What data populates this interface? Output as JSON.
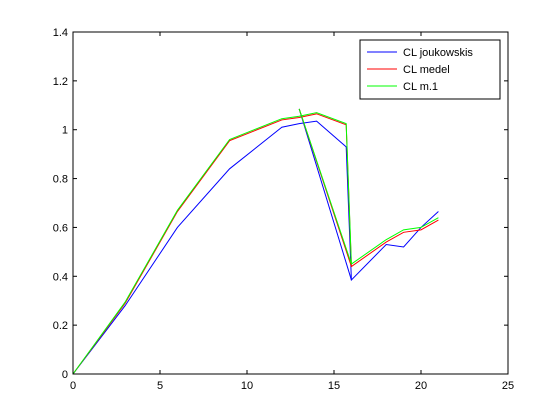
{
  "chart_data": {
    "type": "line",
    "xlim": [
      0,
      25
    ],
    "ylim": [
      0,
      1.4
    ],
    "x_ticks": [
      "0",
      "5",
      "10",
      "15",
      "20",
      "25"
    ],
    "y_ticks": [
      "0",
      "0.2",
      "0.4",
      "0.6",
      "0.8",
      "1",
      "1.2",
      "1.4"
    ],
    "grid": false,
    "legend_position": "top-right",
    "series": [
      {
        "name": "CL joukowskis",
        "color": "#0000ff",
        "points": [
          [
            0,
            0
          ],
          [
            3,
            0.28
          ],
          [
            6,
            0.6
          ],
          [
            9,
            0.84
          ],
          [
            12,
            1.01
          ],
          [
            13,
            1.025
          ],
          [
            14,
            1.035
          ],
          [
            15.7,
            0.93
          ],
          [
            16,
            0.385
          ],
          [
            18,
            0.53
          ],
          [
            19,
            0.52
          ],
          [
            20,
            0.6
          ],
          [
            21,
            0.665
          ]
        ]
      },
      {
        "name": "CL medel",
        "color": "#ff0000",
        "points": [
          [
            0,
            0
          ],
          [
            3,
            0.29
          ],
          [
            6,
            0.665
          ],
          [
            9,
            0.955
          ],
          [
            12,
            1.04
          ],
          [
            13,
            1.05
          ],
          [
            14,
            1.065
          ],
          [
            15.7,
            1.02
          ],
          [
            16,
            0.44
          ],
          [
            18,
            0.54
          ],
          [
            19,
            0.58
          ],
          [
            20,
            0.59
          ],
          [
            21,
            0.63
          ]
        ]
      },
      {
        "name": "CL m.1",
        "color": "#00ff00",
        "points": [
          [
            0,
            0
          ],
          [
            3,
            0.295
          ],
          [
            6,
            0.67
          ],
          [
            9,
            0.96
          ],
          [
            12,
            1.045
          ],
          [
            13,
            1.055
          ],
          [
            14,
            1.07
          ],
          [
            15.7,
            1.025
          ],
          [
            16,
            0.45
          ],
          [
            18,
            0.55
          ],
          [
            19,
            0.59
          ],
          [
            20,
            0.6
          ],
          [
            21,
            0.64
          ]
        ]
      }
    ],
    "extra_segments": [
      {
        "series": "CL joukowskis",
        "color": "#0000ff",
        "points": [
          [
            13,
            1.085
          ],
          [
            16,
            0.385
          ]
        ]
      },
      {
        "series": "CL medel",
        "color": "#ff0000",
        "points": [
          [
            13,
            1.085
          ],
          [
            16,
            0.44
          ]
        ]
      },
      {
        "series": "CL m.1",
        "color": "#00ff00",
        "points": [
          [
            13,
            1.085
          ],
          [
            16,
            0.45
          ]
        ]
      }
    ]
  }
}
